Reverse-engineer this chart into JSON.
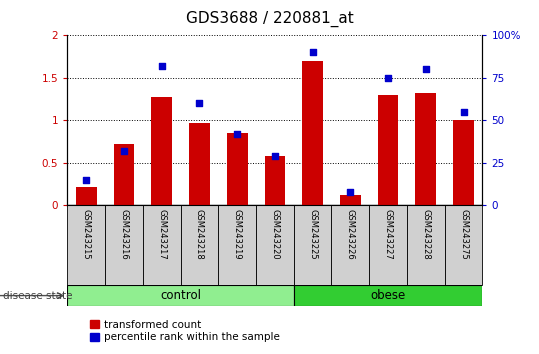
{
  "title": "GDS3688 / 220881_at",
  "samples": [
    "GSM243215",
    "GSM243216",
    "GSM243217",
    "GSM243218",
    "GSM243219",
    "GSM243220",
    "GSM243225",
    "GSM243226",
    "GSM243227",
    "GSM243228",
    "GSM243275"
  ],
  "red_values": [
    0.22,
    0.72,
    1.27,
    0.97,
    0.85,
    0.58,
    1.7,
    0.12,
    1.3,
    1.32,
    1.0
  ],
  "blue_values": [
    15,
    32,
    82,
    60,
    42,
    29,
    90,
    8,
    75,
    80,
    55
  ],
  "group_configs": [
    {
      "label": "control",
      "start": 0,
      "end": 5,
      "color": "#90EE90"
    },
    {
      "label": "obese",
      "start": 6,
      "end": 10,
      "color": "#32CD32"
    }
  ],
  "ylim_left": [
    0,
    2
  ],
  "ylim_right": [
    0,
    100
  ],
  "yticks_left": [
    0,
    0.5,
    1.0,
    1.5,
    2.0
  ],
  "ytick_labels_left": [
    "0",
    "0.5",
    "1",
    "1.5",
    "2"
  ],
  "yticks_right": [
    0,
    25,
    50,
    75,
    100
  ],
  "ytick_labels_right": [
    "0",
    "25",
    "50",
    "75",
    "100%"
  ],
  "red_color": "#CC0000",
  "blue_color": "#0000CC",
  "legend_red": "transformed count",
  "legend_blue": "percentile rank within the sample",
  "disease_state_label": "disease state",
  "title_fontsize": 11,
  "tick_fontsize": 7.5,
  "sample_label_fontsize": 6,
  "group_label_fontsize": 8.5
}
